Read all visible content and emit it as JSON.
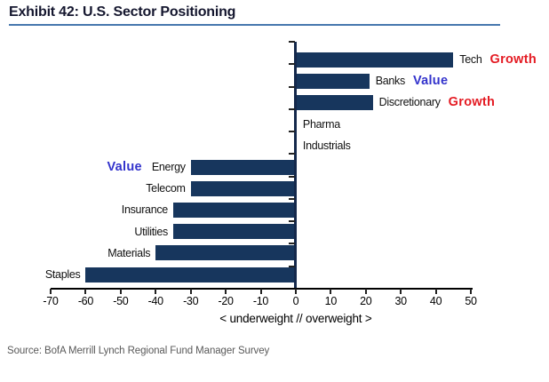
{
  "title": "Exhibit 42: U.S. Sector Positioning",
  "source": "Source: BofA Merrill Lynch Regional Fund Manager Survey",
  "colors": {
    "bar": "#17365D",
    "growth_tag": "#E41B23",
    "value_tag": "#3333CC",
    "title_text": "#14162e",
    "title_underline": "#4677AE",
    "axis": "#000000",
    "zero_line": "#14284B",
    "source_text": "#595959"
  },
  "chart_data": {
    "type": "bar",
    "orientation": "horizontal",
    "title": "Exhibit 42: U.S. Sector Positioning",
    "categories": [
      "Tech",
      "Banks",
      "Discretionary",
      "Pharma",
      "Industrials",
      "Energy",
      "Telecom",
      "Insurance",
      "Utilities",
      "Materials",
      "Staples"
    ],
    "values": [
      45,
      21,
      22,
      0,
      0,
      -30,
      -30,
      -35,
      -35,
      -40,
      -60
    ],
    "style_tags": [
      "Growth",
      "Value",
      "Growth",
      "",
      "",
      "Value",
      "",
      "",
      "",
      "",
      ""
    ],
    "xlabel": "< underweight // overweight >",
    "ylabel": "",
    "xlim": [
      -70,
      50
    ],
    "xticks": [
      -70,
      -60,
      -50,
      -40,
      -30,
      -20,
      -10,
      0,
      10,
      20,
      30,
      40,
      50
    ],
    "grid": false,
    "legend": "none",
    "bar_color": "#17365D"
  }
}
